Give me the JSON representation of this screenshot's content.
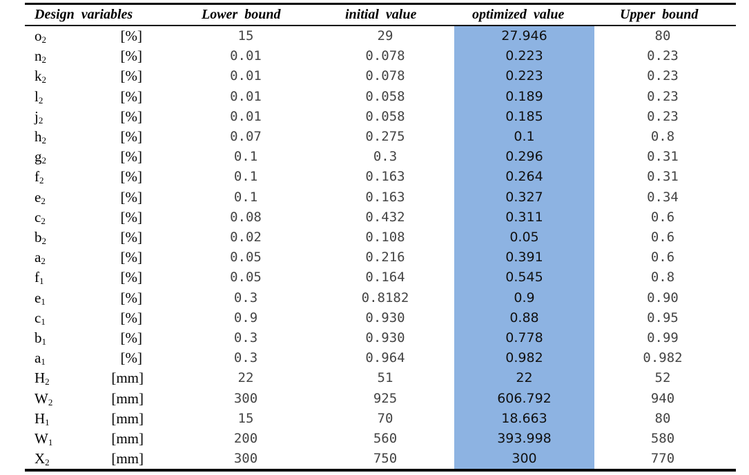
{
  "table": {
    "headers": {
      "design_variables": "Design  variables",
      "lower_bound": "Lower  bound",
      "initial_value": "initial  value",
      "optimized_value": "optimized  value",
      "upper_bound": "Upper  bound"
    },
    "rows": [
      {
        "var": "o",
        "sub": "2",
        "unit": "[%]",
        "lower": "15",
        "initial": "29",
        "optimized": "27.946",
        "upper": "80"
      },
      {
        "var": "n",
        "sub": "2",
        "unit": "[%]",
        "lower": "0.01",
        "initial": "0.078",
        "optimized": "0.223",
        "upper": "0.23"
      },
      {
        "var": "k",
        "sub": "2",
        "unit": "[%]",
        "lower": "0.01",
        "initial": "0.078",
        "optimized": "0.223",
        "upper": "0.23"
      },
      {
        "var": "l",
        "sub": "2",
        "unit": "[%]",
        "lower": "0.01",
        "initial": "0.058",
        "optimized": "0.189",
        "upper": "0.23"
      },
      {
        "var": "j",
        "sub": "2",
        "unit": "[%]",
        "lower": "0.01",
        "initial": "0.058",
        "optimized": "0.185",
        "upper": "0.23"
      },
      {
        "var": "h",
        "sub": "2",
        "unit": "[%]",
        "lower": "0.07",
        "initial": "0.275",
        "optimized": "0.1",
        "upper": "0.8"
      },
      {
        "var": "g",
        "sub": "2",
        "unit": "[%]",
        "lower": "0.1",
        "initial": "0.3",
        "optimized": "0.296",
        "upper": "0.31"
      },
      {
        "var": "f",
        "sub": "2",
        "unit": "[%]",
        "lower": "0.1",
        "initial": "0.163",
        "optimized": "0.264",
        "upper": "0.31"
      },
      {
        "var": "e",
        "sub": "2",
        "unit": "[%]",
        "lower": "0.1",
        "initial": "0.163",
        "optimized": "0.327",
        "upper": "0.34"
      },
      {
        "var": "c",
        "sub": "2",
        "unit": "[%]",
        "lower": "0.08",
        "initial": "0.432",
        "optimized": "0.311",
        "upper": "0.6"
      },
      {
        "var": "b",
        "sub": "2",
        "unit": "[%]",
        "lower": "0.02",
        "initial": "0.108",
        "optimized": "0.05",
        "upper": "0.6"
      },
      {
        "var": "a",
        "sub": "2",
        "unit": "[%]",
        "lower": "0.05",
        "initial": "0.216",
        "optimized": "0.391",
        "upper": "0.6"
      },
      {
        "var": "f",
        "sub": "1",
        "unit": "[%]",
        "lower": "0.05",
        "initial": "0.164",
        "optimized": "0.545",
        "upper": "0.8"
      },
      {
        "var": "e",
        "sub": "1",
        "unit": "[%]",
        "lower": "0.3",
        "initial": "0.8182",
        "optimized": "0.9",
        "upper": "0.90"
      },
      {
        "var": "c",
        "sub": "1",
        "unit": "[%]",
        "lower": "0.9",
        "initial": "0.930",
        "optimized": "0.88",
        "upper": "0.95"
      },
      {
        "var": "b",
        "sub": "1",
        "unit": "[%]",
        "lower": "0.3",
        "initial": "0.930",
        "optimized": "0.778",
        "upper": "0.99"
      },
      {
        "var": "a",
        "sub": "1",
        "unit": "[%]",
        "lower": "0.3",
        "initial": "0.964",
        "optimized": "0.982",
        "upper": "0.982"
      },
      {
        "var": "H",
        "sub": "2",
        "unit": "[mm]",
        "lower": "22",
        "initial": "51",
        "optimized": "22",
        "upper": "52"
      },
      {
        "var": "W",
        "sub": "2",
        "unit": "[mm]",
        "lower": "300",
        "initial": "925",
        "optimized": "606.792",
        "upper": "940"
      },
      {
        "var": "H",
        "sub": "1",
        "unit": "[mm]",
        "lower": "15",
        "initial": "70",
        "optimized": "18.663",
        "upper": "80"
      },
      {
        "var": "W",
        "sub": "1",
        "unit": "[mm]",
        "lower": "200",
        "initial": "560",
        "optimized": "393.998",
        "upper": "580"
      },
      {
        "var": "X",
        "sub": "2",
        "unit": "[mm]",
        "lower": "300",
        "initial": "750",
        "optimized": "300",
        "upper": "770"
      }
    ],
    "highlight_color": "#8db3e2"
  }
}
